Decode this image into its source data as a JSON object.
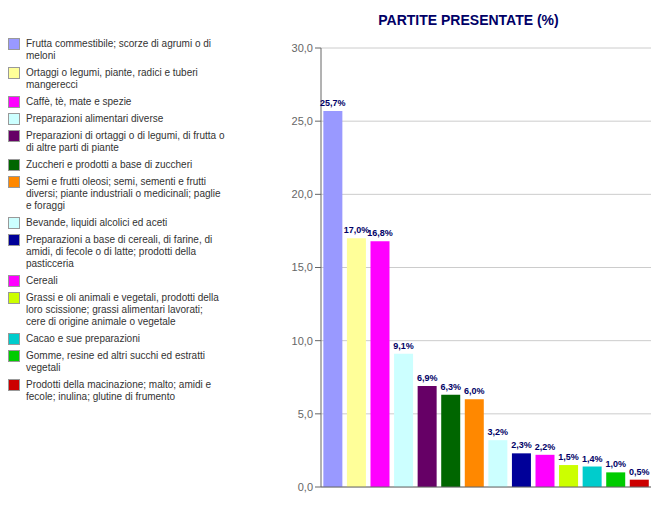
{
  "chart_data": {
    "type": "bar",
    "title": "PARTITE PRESENTATE (%)",
    "categories": [
      "Frutta commestibile; scorze di agrumi o di\nmeloni",
      "Ortaggi o legumi, piante, radici e tuberi\nmangerecci",
      "Caffè, tè, mate e spezie",
      "Preparazioni alimentari diverse",
      "Preparazioni di ortaggi o di legumi, di frutta o\ndi altre parti di piante",
      "Zuccheri e prodotti a base di zuccheri",
      "Semi e frutti oleosi; semi, sementi e frutti\ndiversi; piante industriali o medicinali; paglie\ne foraggi",
      "Bevande, liquidi alcolici ed aceti",
      "Preparazioni a base di cereali, di farine, di\namidi, di fecole o di latte; prodotti della\npasticceria",
      "Cereali",
      "Grassi e oli animali e vegetali, prodotti della\nloro scissione; grassi alimentari lavorati;\ncere di origine animale o vegetale",
      "Cacao e sue preparazioni",
      "Gomme, resine ed altri succhi ed estratti\nvegetali",
      "Prodotti della macinazione; malto; amidi e\nfecole; inulina; glutine di frumento"
    ],
    "values": [
      25.7,
      17.0,
      16.8,
      9.1,
      6.9,
      6.3,
      6.0,
      3.2,
      2.3,
      2.2,
      1.5,
      1.4,
      1.0,
      0.5
    ],
    "value_labels": [
      "25,7%",
      "17,0%",
      "16,8%",
      "9,1%",
      "6,9%",
      "6,3%",
      "6,0%",
      "3,2%",
      "2,3%",
      "2,2%",
      "1,5%",
      "1,4%",
      "1,0%",
      "0,5%"
    ],
    "colors": [
      "#9999FF",
      "#FFFF99",
      "#FF00FF",
      "#CCFFFF",
      "#660066",
      "#006600",
      "#FF8800",
      "#CCFFFF",
      "#000099",
      "#FF00FF",
      "#CCFF00",
      "#00CCCC",
      "#00CC00",
      "#CC0000"
    ],
    "ylim": [
      0,
      30
    ],
    "yticks": [
      {
        "value": 0,
        "label": "0,0"
      },
      {
        "value": 5,
        "label": "5,0"
      },
      {
        "value": 10,
        "label": "10,0"
      },
      {
        "value": 15,
        "label": "15,0"
      },
      {
        "value": 20,
        "label": "20,0"
      },
      {
        "value": 25,
        "label": "25,0"
      },
      {
        "value": 30,
        "label": "30,0"
      }
    ],
    "grid": true,
    "data_labels": true,
    "tick_labels": "y",
    "legend": "upper left"
  }
}
